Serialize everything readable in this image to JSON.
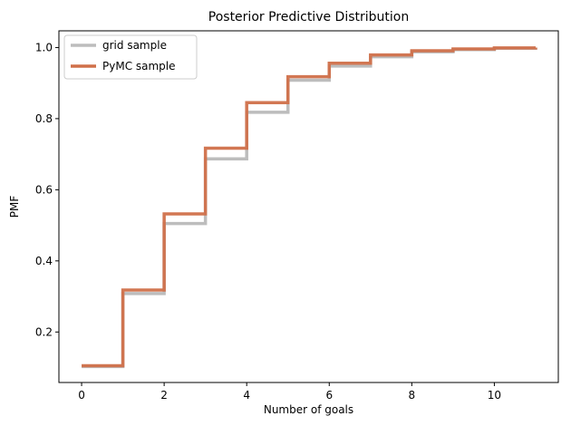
{
  "chart_data": {
    "type": "line",
    "title": "Posterior Predictive Distribution",
    "xlabel": "Number of goals",
    "ylabel": "PMF",
    "xlim": [
      -0.55,
      11.55
    ],
    "ylim": [
      0.058,
      1.047
    ],
    "xticks": [
      0,
      2,
      4,
      6,
      8,
      10
    ],
    "yticks": [
      0.2,
      0.4,
      0.6,
      0.8,
      1.0
    ],
    "xtick_labels": [
      "0",
      "2",
      "4",
      "6",
      "8",
      "10"
    ],
    "ytick_labels": [
      "0.2",
      "0.4",
      "0.6",
      "0.8",
      "1.0"
    ],
    "grid": false,
    "legend_position": "top-left",
    "step": "post",
    "x": [
      0,
      1,
      2,
      3,
      4,
      5,
      6,
      7,
      8,
      9,
      10,
      11
    ],
    "series": [
      {
        "name": "grid sample",
        "color": "#bdbdbd",
        "values": [
          0.103,
          0.308,
          0.505,
          0.687,
          0.818,
          0.908,
          0.948,
          0.974,
          0.988,
          0.994,
          0.998,
          1.0
        ]
      },
      {
        "name": "PyMC sample",
        "color": "#d0704a",
        "values": [
          0.105,
          0.318,
          0.532,
          0.717,
          0.845,
          0.918,
          0.956,
          0.979,
          0.991,
          0.996,
          0.999,
          1.0
        ]
      }
    ]
  }
}
